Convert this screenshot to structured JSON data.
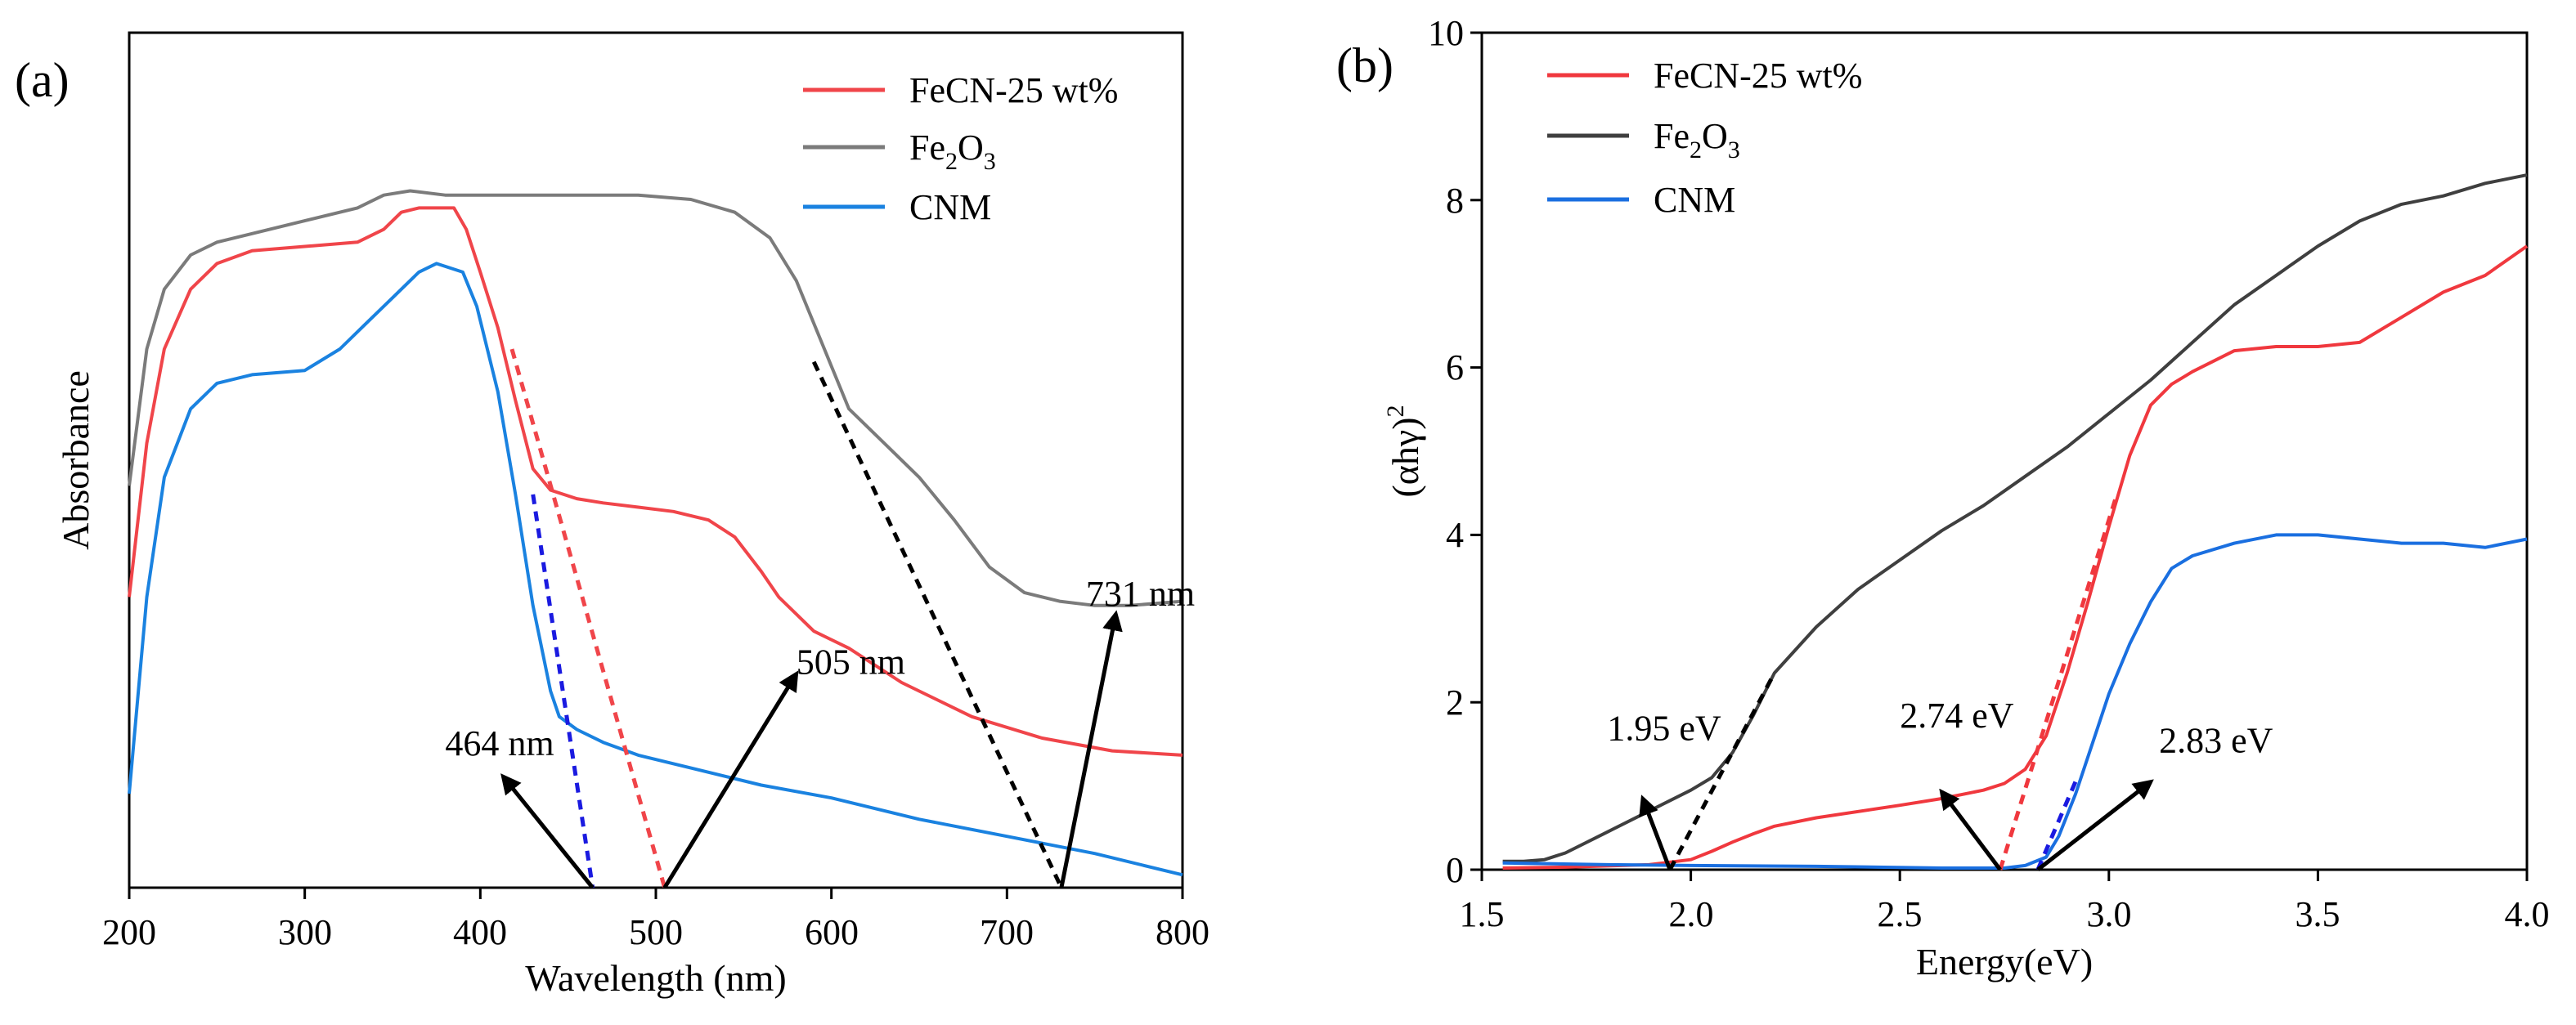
{
  "figure": {
    "panels": [
      {
        "panel_label": "(a)",
        "xlabel": "Wavelength (nm)",
        "ylabel": "Absorbance",
        "x_ticks": [
          "200",
          "300",
          "400",
          "500",
          "600",
          "700",
          "800"
        ]
      },
      {
        "panel_label": "(b)",
        "xlabel": "Energy(eV)",
        "ylabel_main": "(αhγ)",
        "ylabel_sup": "2",
        "x_ticks": [
          "1.5",
          "2.0",
          "2.5",
          "3.0",
          "3.5",
          "4.0"
        ],
        "y_ticks": [
          "0",
          "2",
          "4",
          "6",
          "8",
          "10"
        ]
      }
    ]
  },
  "chart_data": [
    {
      "type": "line",
      "panel": "(a)",
      "title": "",
      "xlabel": "Wavelength (nm)",
      "ylabel": "Absorbance",
      "xlim": [
        200,
        800
      ],
      "ylim": [
        0,
        1
      ],
      "y_tick_labels": "none",
      "legend_position": "top-right",
      "colors": {
        "FeCN": "#f0454a",
        "Fe2O3": "#7b7b7b",
        "CNM": "#1a82e0",
        "arrow": "#000000"
      },
      "series": [
        {
          "name": "FeCN-25 wt%",
          "color": "#f0454a",
          "x": [
            200,
            210,
            220,
            235,
            250,
            270,
            300,
            330,
            345,
            355,
            365,
            375,
            385,
            392,
            400,
            410,
            420,
            430,
            440,
            455,
            470,
            490,
            510,
            530,
            545,
            560,
            570,
            590,
            610,
            640,
            680,
            720,
            760,
            800
          ],
          "y": [
            0.34,
            0.52,
            0.63,
            0.7,
            0.73,
            0.745,
            0.75,
            0.755,
            0.77,
            0.79,
            0.795,
            0.795,
            0.795,
            0.77,
            0.72,
            0.655,
            0.57,
            0.49,
            0.465,
            0.455,
            0.45,
            0.445,
            0.44,
            0.43,
            0.41,
            0.37,
            0.34,
            0.3,
            0.28,
            0.24,
            0.2,
            0.175,
            0.16,
            0.155
          ]
        },
        {
          "name": "Fe2O3",
          "color": "#7b7b7b",
          "x": [
            200,
            210,
            220,
            235,
            250,
            270,
            300,
            330,
            345,
            360,
            380,
            400,
            430,
            460,
            490,
            520,
            545,
            565,
            580,
            595,
            610,
            630,
            650,
            670,
            690,
            710,
            730,
            750,
            770,
            800
          ],
          "y": [
            0.47,
            0.63,
            0.7,
            0.74,
            0.755,
            0.765,
            0.78,
            0.795,
            0.81,
            0.815,
            0.81,
            0.81,
            0.81,
            0.81,
            0.81,
            0.805,
            0.79,
            0.76,
            0.71,
            0.635,
            0.56,
            0.52,
            0.48,
            0.43,
            0.375,
            0.345,
            0.335,
            0.33,
            0.33,
            0.335
          ]
        },
        {
          "name": "CNM",
          "color": "#1a82e0",
          "x": [
            200,
            210,
            220,
            235,
            250,
            270,
            300,
            320,
            335,
            350,
            365,
            375,
            390,
            398,
            410,
            420,
            430,
            440,
            445,
            455,
            470,
            490,
            520,
            560,
            600,
            650,
            700,
            750,
            800
          ],
          "y": [
            0.11,
            0.34,
            0.48,
            0.56,
            0.59,
            0.6,
            0.605,
            0.63,
            0.66,
            0.69,
            0.72,
            0.73,
            0.72,
            0.68,
            0.58,
            0.46,
            0.33,
            0.23,
            0.2,
            0.185,
            0.17,
            0.155,
            0.14,
            0.12,
            0.105,
            0.08,
            0.06,
            0.04,
            0.015
          ]
        }
      ],
      "fit_lines": [
        {
          "series": "FeCN-25 wt%",
          "color": "#f0454a",
          "from": [
            418,
            0.63
          ],
          "to": [
            505,
            0.0
          ]
        },
        {
          "series": "Fe2O3",
          "color": "#000000",
          "from": [
            590,
            0.615
          ],
          "to": [
            731,
            0.0
          ]
        },
        {
          "series": "CNM",
          "color": "#1a1ae0",
          "from": [
            430,
            0.46
          ],
          "to": [
            464,
            0.0
          ]
        }
      ],
      "annotations": [
        {
          "text": "464 nm",
          "arrow_from": [
            464,
            0.0
          ],
          "arrow_to": [
            413,
            0.13
          ],
          "label_at": [
            380,
            0.155
          ]
        },
        {
          "text": "505 nm",
          "arrow_from": [
            505,
            0.0
          ],
          "arrow_to": [
            580,
            0.25
          ],
          "label_at": [
            580,
            0.25
          ]
        },
        {
          "text": "731 nm",
          "arrow_from": [
            731,
            0.0
          ],
          "arrow_to": [
            762,
            0.32
          ],
          "label_at": [
            745,
            0.33
          ]
        }
      ]
    },
    {
      "type": "line",
      "panel": "(b)",
      "title": "",
      "xlabel": "Energy(eV)",
      "ylabel": "(αhγ)^2",
      "xlim": [
        1.5,
        4.0
      ],
      "ylim": [
        0,
        10
      ],
      "legend_position": "top-left",
      "colors": {
        "FeCN": "#f0383e",
        "Fe2O3": "#3f3f3f",
        "CNM": "#1a6fe0",
        "arrow": "#000000"
      },
      "series": [
        {
          "name": "FeCN-25 wt%",
          "color": "#f0383e",
          "x": [
            1.55,
            1.7,
            1.9,
            2.0,
            2.05,
            2.1,
            2.15,
            2.2,
            2.3,
            2.5,
            2.6,
            2.7,
            2.75,
            2.8,
            2.85,
            2.9,
            2.95,
            3.0,
            3.05,
            3.1,
            3.15,
            3.2,
            3.3,
            3.4,
            3.5,
            3.6,
            3.7,
            3.8,
            3.9,
            4.0
          ],
          "y": [
            0.02,
            0.03,
            0.06,
            0.12,
            0.22,
            0.33,
            0.43,
            0.52,
            0.62,
            0.77,
            0.85,
            0.95,
            1.03,
            1.2,
            1.6,
            2.35,
            3.2,
            4.1,
            4.95,
            5.55,
            5.8,
            5.95,
            6.2,
            6.25,
            6.25,
            6.3,
            6.6,
            6.9,
            7.1,
            7.45
          ]
        },
        {
          "name": "Fe2O3",
          "color": "#3f3f3f",
          "x": [
            1.55,
            1.6,
            1.65,
            1.7,
            1.8,
            1.9,
            2.0,
            2.05,
            2.1,
            2.15,
            2.2,
            2.3,
            2.4,
            2.5,
            2.6,
            2.7,
            2.8,
            2.9,
            3.0,
            3.1,
            3.2,
            3.3,
            3.4,
            3.5,
            3.6,
            3.7,
            3.8,
            3.9,
            4.0
          ],
          "y": [
            0.1,
            0.1,
            0.12,
            0.2,
            0.45,
            0.7,
            0.95,
            1.1,
            1.4,
            1.85,
            2.35,
            2.9,
            3.35,
            3.7,
            4.05,
            4.35,
            4.7,
            5.05,
            5.45,
            5.85,
            6.3,
            6.75,
            7.1,
            7.45,
            7.75,
            7.95,
            8.05,
            8.2,
            8.3
          ]
        },
        {
          "name": "CNM",
          "color": "#1a6fe0",
          "x": [
            1.55,
            1.8,
            2.0,
            2.3,
            2.6,
            2.75,
            2.8,
            2.85,
            2.88,
            2.92,
            2.96,
            3.0,
            3.05,
            3.1,
            3.15,
            3.2,
            3.3,
            3.4,
            3.5,
            3.6,
            3.7,
            3.8,
            3.9,
            4.0
          ],
          "y": [
            0.08,
            0.06,
            0.05,
            0.04,
            0.02,
            0.02,
            0.05,
            0.15,
            0.4,
            0.9,
            1.5,
            2.1,
            2.7,
            3.2,
            3.6,
            3.75,
            3.9,
            4.0,
            4.0,
            3.95,
            3.9,
            3.9,
            3.85,
            3.95
          ]
        }
      ],
      "fit_lines": [
        {
          "series": "Fe2O3",
          "color": "#000000",
          "from": [
            1.95,
            0.0
          ],
          "to": [
            2.2,
            2.35
          ]
        },
        {
          "series": "FeCN-25 wt%",
          "color": "#f0383e",
          "from": [
            2.74,
            0.0
          ],
          "to": [
            3.02,
            4.5
          ]
        },
        {
          "series": "CNM",
          "color": "#1a1ae0",
          "from": [
            2.83,
            0.0
          ],
          "to": [
            2.92,
            1.05
          ]
        }
      ],
      "annotations": [
        {
          "text": "1.95 eV",
          "arrow_from": [
            1.95,
            0.0
          ],
          "arrow_to": [
            1.885,
            0.85
          ],
          "label_at": [
            1.8,
            1.55
          ]
        },
        {
          "text": "2.74 eV",
          "arrow_from": [
            2.74,
            0.0
          ],
          "arrow_to": [
            2.6,
            0.93
          ],
          "label_at": [
            2.5,
            1.7
          ]
        },
        {
          "text": "2.83 eV",
          "arrow_from": [
            2.83,
            0.0
          ],
          "arrow_to": [
            3.1,
            1.05
          ],
          "label_at": [
            3.12,
            1.4
          ]
        }
      ]
    }
  ]
}
